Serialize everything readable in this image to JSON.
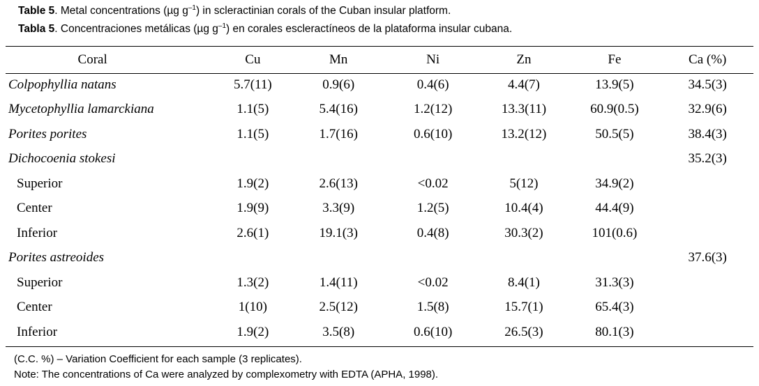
{
  "caption_en": {
    "label": "Table 5",
    "text_before": ". Metal concentrations (µg g",
    "exponent": "–1",
    "text_after": ") in scleractinian corals of the Cuban insular platform."
  },
  "caption_es": {
    "label": "Tabla 5",
    "text_before": ". Concentraciones metálicas (µg g",
    "exponent": "–1",
    "text_after": ") en corales escleractíneos de la plataforma insular cubana."
  },
  "table": {
    "headers": [
      "Coral",
      "Cu",
      "Mn",
      "Ni",
      "Zn",
      "Fe",
      "Ca (%)"
    ],
    "rows": [
      {
        "kind": "species",
        "cells": [
          "Colpophyllia natans",
          "5.7(11)",
          "0.9(6)",
          "0.4(6)",
          "4.4(7)",
          "13.9(5)",
          "34.5(3)"
        ]
      },
      {
        "kind": "species",
        "cells": [
          "Mycetophyllia lamarckiana",
          "1.1(5)",
          "5.4(16)",
          "1.2(12)",
          "13.3(11)",
          "60.9(0.5)",
          "32.9(6)"
        ]
      },
      {
        "kind": "species",
        "cells": [
          "Porites porites",
          "1.1(5)",
          "1.7(16)",
          "0.6(10)",
          "13.2(12)",
          "50.5(5)",
          "38.4(3)"
        ]
      },
      {
        "kind": "species",
        "cells": [
          "Dichocoenia stokesi",
          "",
          "",
          "",
          "",
          "",
          "35.2(3)"
        ]
      },
      {
        "kind": "sub",
        "cells": [
          "Superior",
          "1.9(2)",
          "2.6(13)",
          "<0.02",
          "5(12)",
          "34.9(2)",
          ""
        ]
      },
      {
        "kind": "sub",
        "cells": [
          "Center",
          "1.9(9)",
          "3.3(9)",
          "1.2(5)",
          "10.4(4)",
          "44.4(9)",
          ""
        ]
      },
      {
        "kind": "sub",
        "cells": [
          "Inferior",
          "2.6(1)",
          "19.1(3)",
          "0.4(8)",
          "30.3(2)",
          "101(0.6)",
          ""
        ]
      },
      {
        "kind": "species",
        "cells": [
          "Porites astreoides",
          "",
          "",
          "",
          "",
          "",
          "37.6(3)"
        ]
      },
      {
        "kind": "sub",
        "cells": [
          "Superior",
          "1.3(2)",
          "1.4(11)",
          "<0.02",
          "8.4(1)",
          "31.3(3)",
          ""
        ]
      },
      {
        "kind": "sub",
        "cells": [
          "Center",
          "1(10)",
          "2.5(12)",
          "1.5(8)",
          "15.7(1)",
          "65.4(3)",
          ""
        ]
      },
      {
        "kind": "sub",
        "cells": [
          "Inferior",
          "1.9(2)",
          "3.5(8)",
          "0.6(10)",
          "26.5(3)",
          "80.1(3)",
          ""
        ]
      }
    ]
  },
  "notes": [
    "(C.C. %) – Variation Coefficient for each sample (3 replicates).",
    "Note: The concentrations of Ca were analyzed by complexometry with EDTA (APHA, 1998)."
  ]
}
